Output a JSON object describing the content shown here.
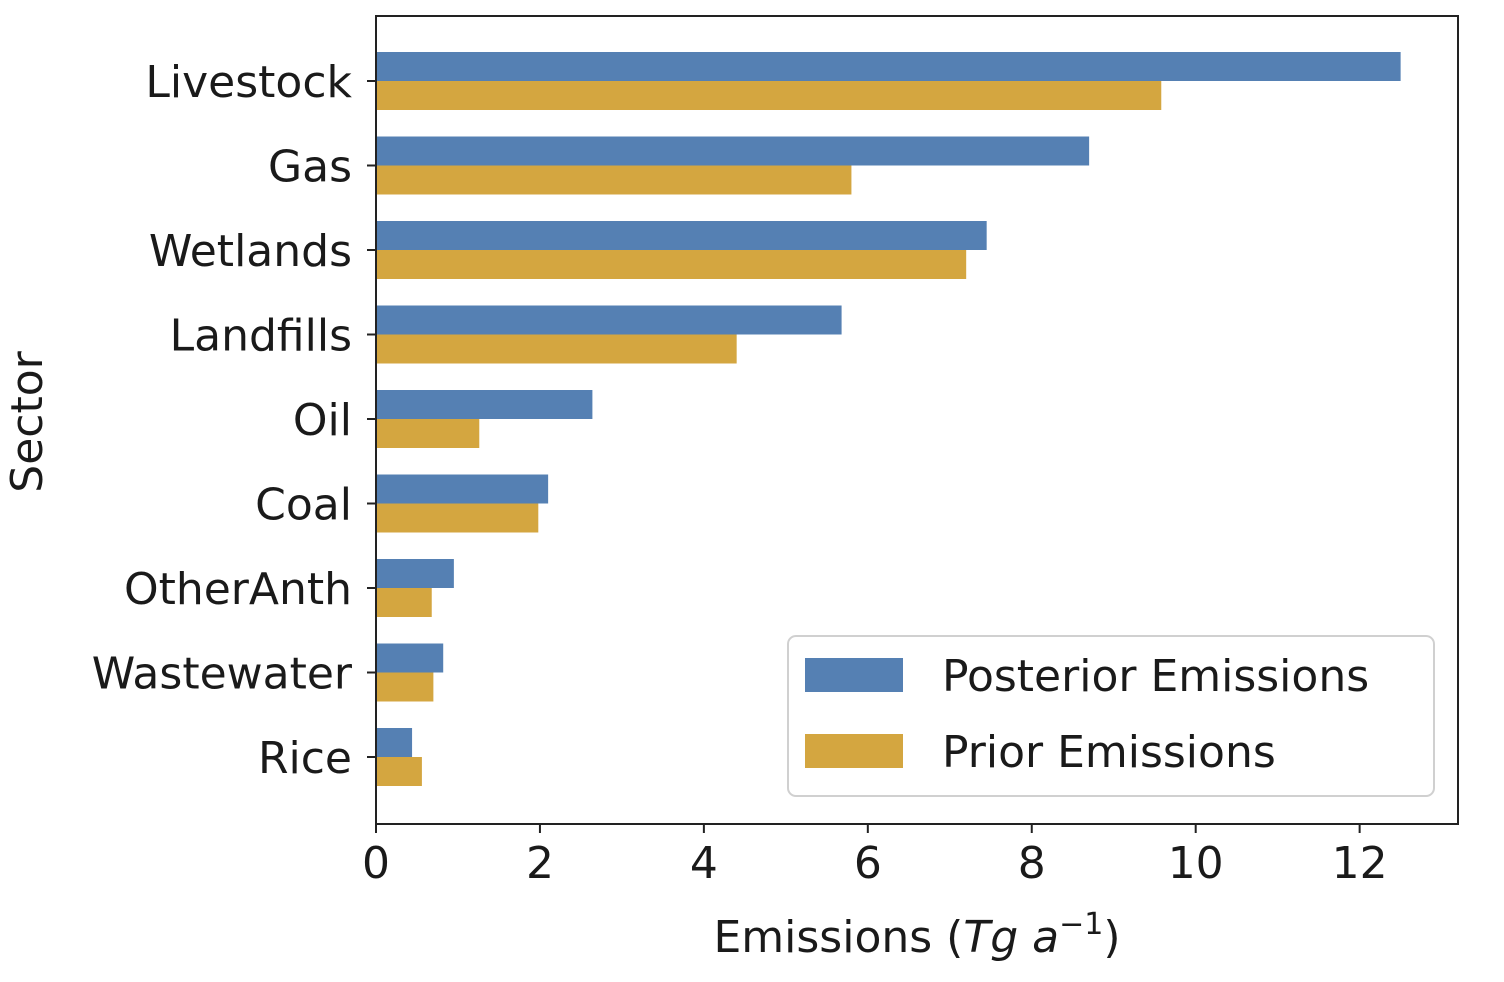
{
  "chart_data": {
    "type": "bar",
    "orientation": "horizontal",
    "title": "",
    "xlabel": {
      "base": "Emissions (",
      "italic_parts": [
        "Tg a"
      ],
      "superscript": "−1",
      "close": ")"
    },
    "ylabel": "Sector",
    "categories": [
      "Livestock",
      "Gas",
      "Wetlands",
      "Landfills",
      "Oil",
      "Coal",
      "OtherAnth",
      "Wastewater",
      "Rice"
    ],
    "series": [
      {
        "name": "Posterior Emissions",
        "color": "#5580b3",
        "values": [
          12.5,
          8.7,
          7.45,
          5.68,
          2.64,
          2.1,
          0.95,
          0.82,
          0.44
        ]
      },
      {
        "name": "Prior Emissions",
        "color": "#d4a640",
        "values": [
          9.58,
          5.8,
          7.2,
          4.4,
          1.26,
          1.98,
          0.68,
          0.7,
          0.56
        ]
      }
    ],
    "xlim": [
      0,
      13.2
    ],
    "xticks": [
      0,
      2,
      4,
      6,
      8,
      10,
      12
    ],
    "grid": false,
    "legend_position": "lower-right"
  }
}
